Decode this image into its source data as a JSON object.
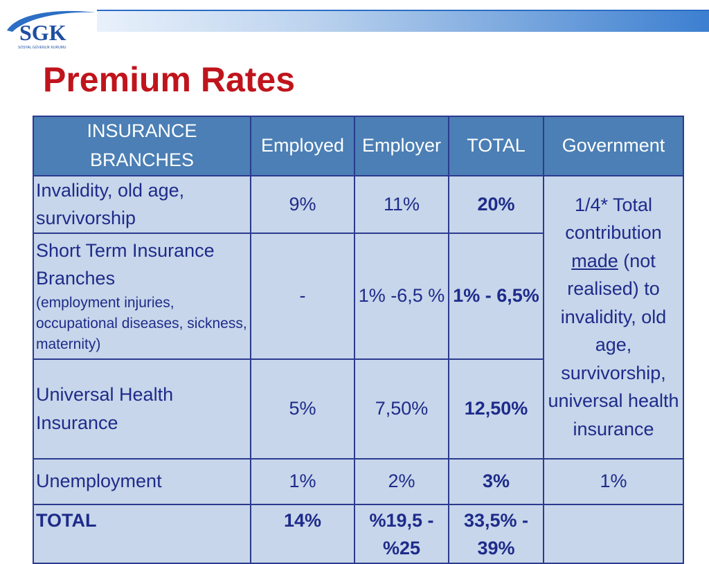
{
  "logo": {
    "text": "SGK",
    "subtitle": "SOSYAL GÜVENLİK KURUMU"
  },
  "title": "Premium Rates",
  "table": {
    "headers": {
      "branches": "INSURANCE BRANCHES",
      "employed": "Employed",
      "employer": "Employer",
      "total": "TOTAL",
      "government": "Government"
    },
    "rows": [
      {
        "branch": "Invalidity, old age, survivorship",
        "employed": "9%",
        "employer": "11%",
        "total": "20%"
      },
      {
        "branch": "Short Term Insurance Branches",
        "branch_note": "(employment injuries, occupational diseases, sickness, maternity)",
        "employed": "-",
        "employer": "1% -6,5 %",
        "total": "1% - 6,5%"
      },
      {
        "branch": "Universal Health Insurance",
        "employed": "5%",
        "employer": "7,50%",
        "total": "12,50%"
      },
      {
        "branch": "Unemployment",
        "employed": "1%",
        "employer": "2%",
        "total": "3%",
        "government": "1%"
      },
      {
        "branch": "TOTAL",
        "employed": "14%",
        "employer": "%19,5 - %25",
        "total": "33,5% - 39%",
        "government": ""
      }
    ],
    "government_merged": {
      "part1": "1/4* Total contribution",
      "made": "made",
      "part2": "(not realised) to invalidity, old age, survivorship, universal health insurance"
    }
  }
}
